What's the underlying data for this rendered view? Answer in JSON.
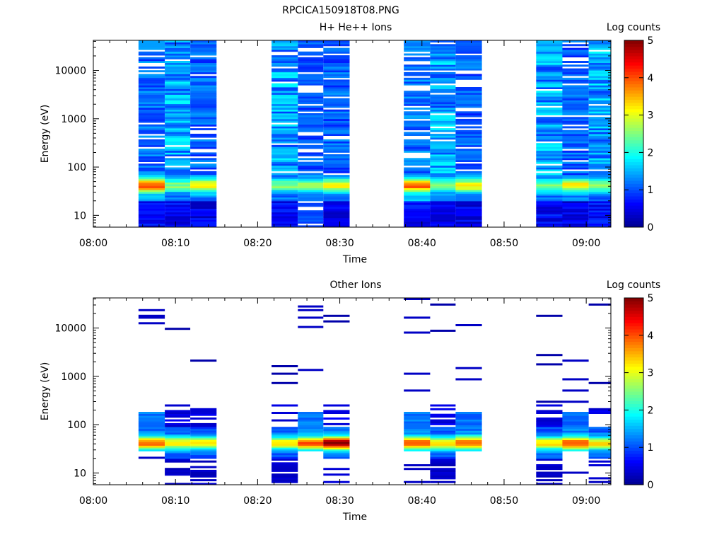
{
  "figure": {
    "filename": "RPCICA150918T08.PNG"
  },
  "colormap": {
    "stops": [
      "#00008f",
      "#0000ff",
      "#007fff",
      "#00ffff",
      "#7fff7f",
      "#ffff00",
      "#ff7f00",
      "#ff0000",
      "#7f0000"
    ]
  },
  "chart_data": [
    {
      "type": "heatmap",
      "title": "H+ He++ Ions",
      "xlabel": "Time",
      "ylabel": "Energy (eV)",
      "colorbar_label": "Log counts",
      "colorbar_range": [
        0,
        5
      ],
      "colorbar_ticks": [
        "0",
        "1",
        "2",
        "3",
        "4",
        "5"
      ],
      "y_scale": "log",
      "ylim": [
        5.7,
        42000
      ],
      "y_ticks": [
        {
          "value": 10,
          "label": "10"
        },
        {
          "value": 100,
          "label": "100"
        },
        {
          "value": 1000,
          "label": "1000"
        },
        {
          "value": 10000,
          "label": "10000"
        }
      ],
      "xlim": [
        "08:00",
        "09:03"
      ],
      "x_ticks": [
        "08:00",
        "08:10",
        "08:20",
        "08:30",
        "08:40",
        "08:50",
        "09:00"
      ],
      "columns": [
        {
          "start": "08:05.5",
          "end": "08:08.7",
          "profile": "bright_low"
        },
        {
          "start": "08:08.7",
          "end": "08:11.8",
          "profile": "dense"
        },
        {
          "start": "08:11.8",
          "end": "08:15.0",
          "profile": "medium_low"
        },
        {
          "start": "08:21.7",
          "end": "08:24.9",
          "profile": "dense"
        },
        {
          "start": "08:24.9",
          "end": "08:28.0",
          "profile": "sparse"
        },
        {
          "start": "08:28.0",
          "end": "08:31.2",
          "profile": "medium_low"
        },
        {
          "start": "08:37.8",
          "end": "08:41.0",
          "profile": "bright_low"
        },
        {
          "start": "08:41.0",
          "end": "08:44.1",
          "profile": "dense"
        },
        {
          "start": "08:44.1",
          "end": "08:47.3",
          "profile": "medium_low"
        },
        {
          "start": "08:53.9",
          "end": "08:57.1",
          "profile": "dense"
        },
        {
          "start": "08:57.1",
          "end": "09:00.3",
          "profile": "medium_low"
        },
        {
          "start": "09:00.3",
          "end": "09:03.0",
          "profile": "dense"
        }
      ]
    },
    {
      "type": "heatmap",
      "title": "Other Ions",
      "xlabel": "Time",
      "ylabel": "Energy (eV)",
      "colorbar_label": "Log counts",
      "colorbar_range": [
        0,
        5
      ],
      "colorbar_ticks": [
        "0",
        "1",
        "2",
        "3",
        "4",
        "5"
      ],
      "y_scale": "log",
      "ylim": [
        5.7,
        42000
      ],
      "y_ticks": [
        {
          "value": 10,
          "label": "10"
        },
        {
          "value": 100,
          "label": "100"
        },
        {
          "value": 1000,
          "label": "1000"
        },
        {
          "value": 10000,
          "label": "10000"
        }
      ],
      "xlim": [
        "08:00",
        "09:03"
      ],
      "x_ticks": [
        "08:00",
        "08:10",
        "08:20",
        "08:30",
        "08:40",
        "08:50",
        "09:00"
      ],
      "columns": [
        {
          "start": "08:05.5",
          "end": "08:08.7",
          "profile": "peak_only"
        },
        {
          "start": "08:08.7",
          "end": "08:11.8",
          "profile": "peak_lines"
        },
        {
          "start": "08:11.8",
          "end": "08:15.0",
          "profile": "peak_lines"
        },
        {
          "start": "08:21.7",
          "end": "08:24.9",
          "profile": "peak_lines"
        },
        {
          "start": "08:24.9",
          "end": "08:28.0",
          "profile": "peak_only"
        },
        {
          "start": "08:28.0",
          "end": "08:31.2",
          "profile": "strong_peak"
        },
        {
          "start": "08:37.8",
          "end": "08:41.0",
          "profile": "peak_only"
        },
        {
          "start": "08:41.0",
          "end": "08:44.1",
          "profile": "peak_lines"
        },
        {
          "start": "08:44.1",
          "end": "08:47.3",
          "profile": "peak_only"
        },
        {
          "start": "08:53.9",
          "end": "08:57.1",
          "profile": "peak_lines"
        },
        {
          "start": "08:57.1",
          "end": "09:00.3",
          "profile": "peak_only"
        },
        {
          "start": "09:00.3",
          "end": "09:03.0",
          "profile": "peak_lines"
        }
      ]
    }
  ]
}
